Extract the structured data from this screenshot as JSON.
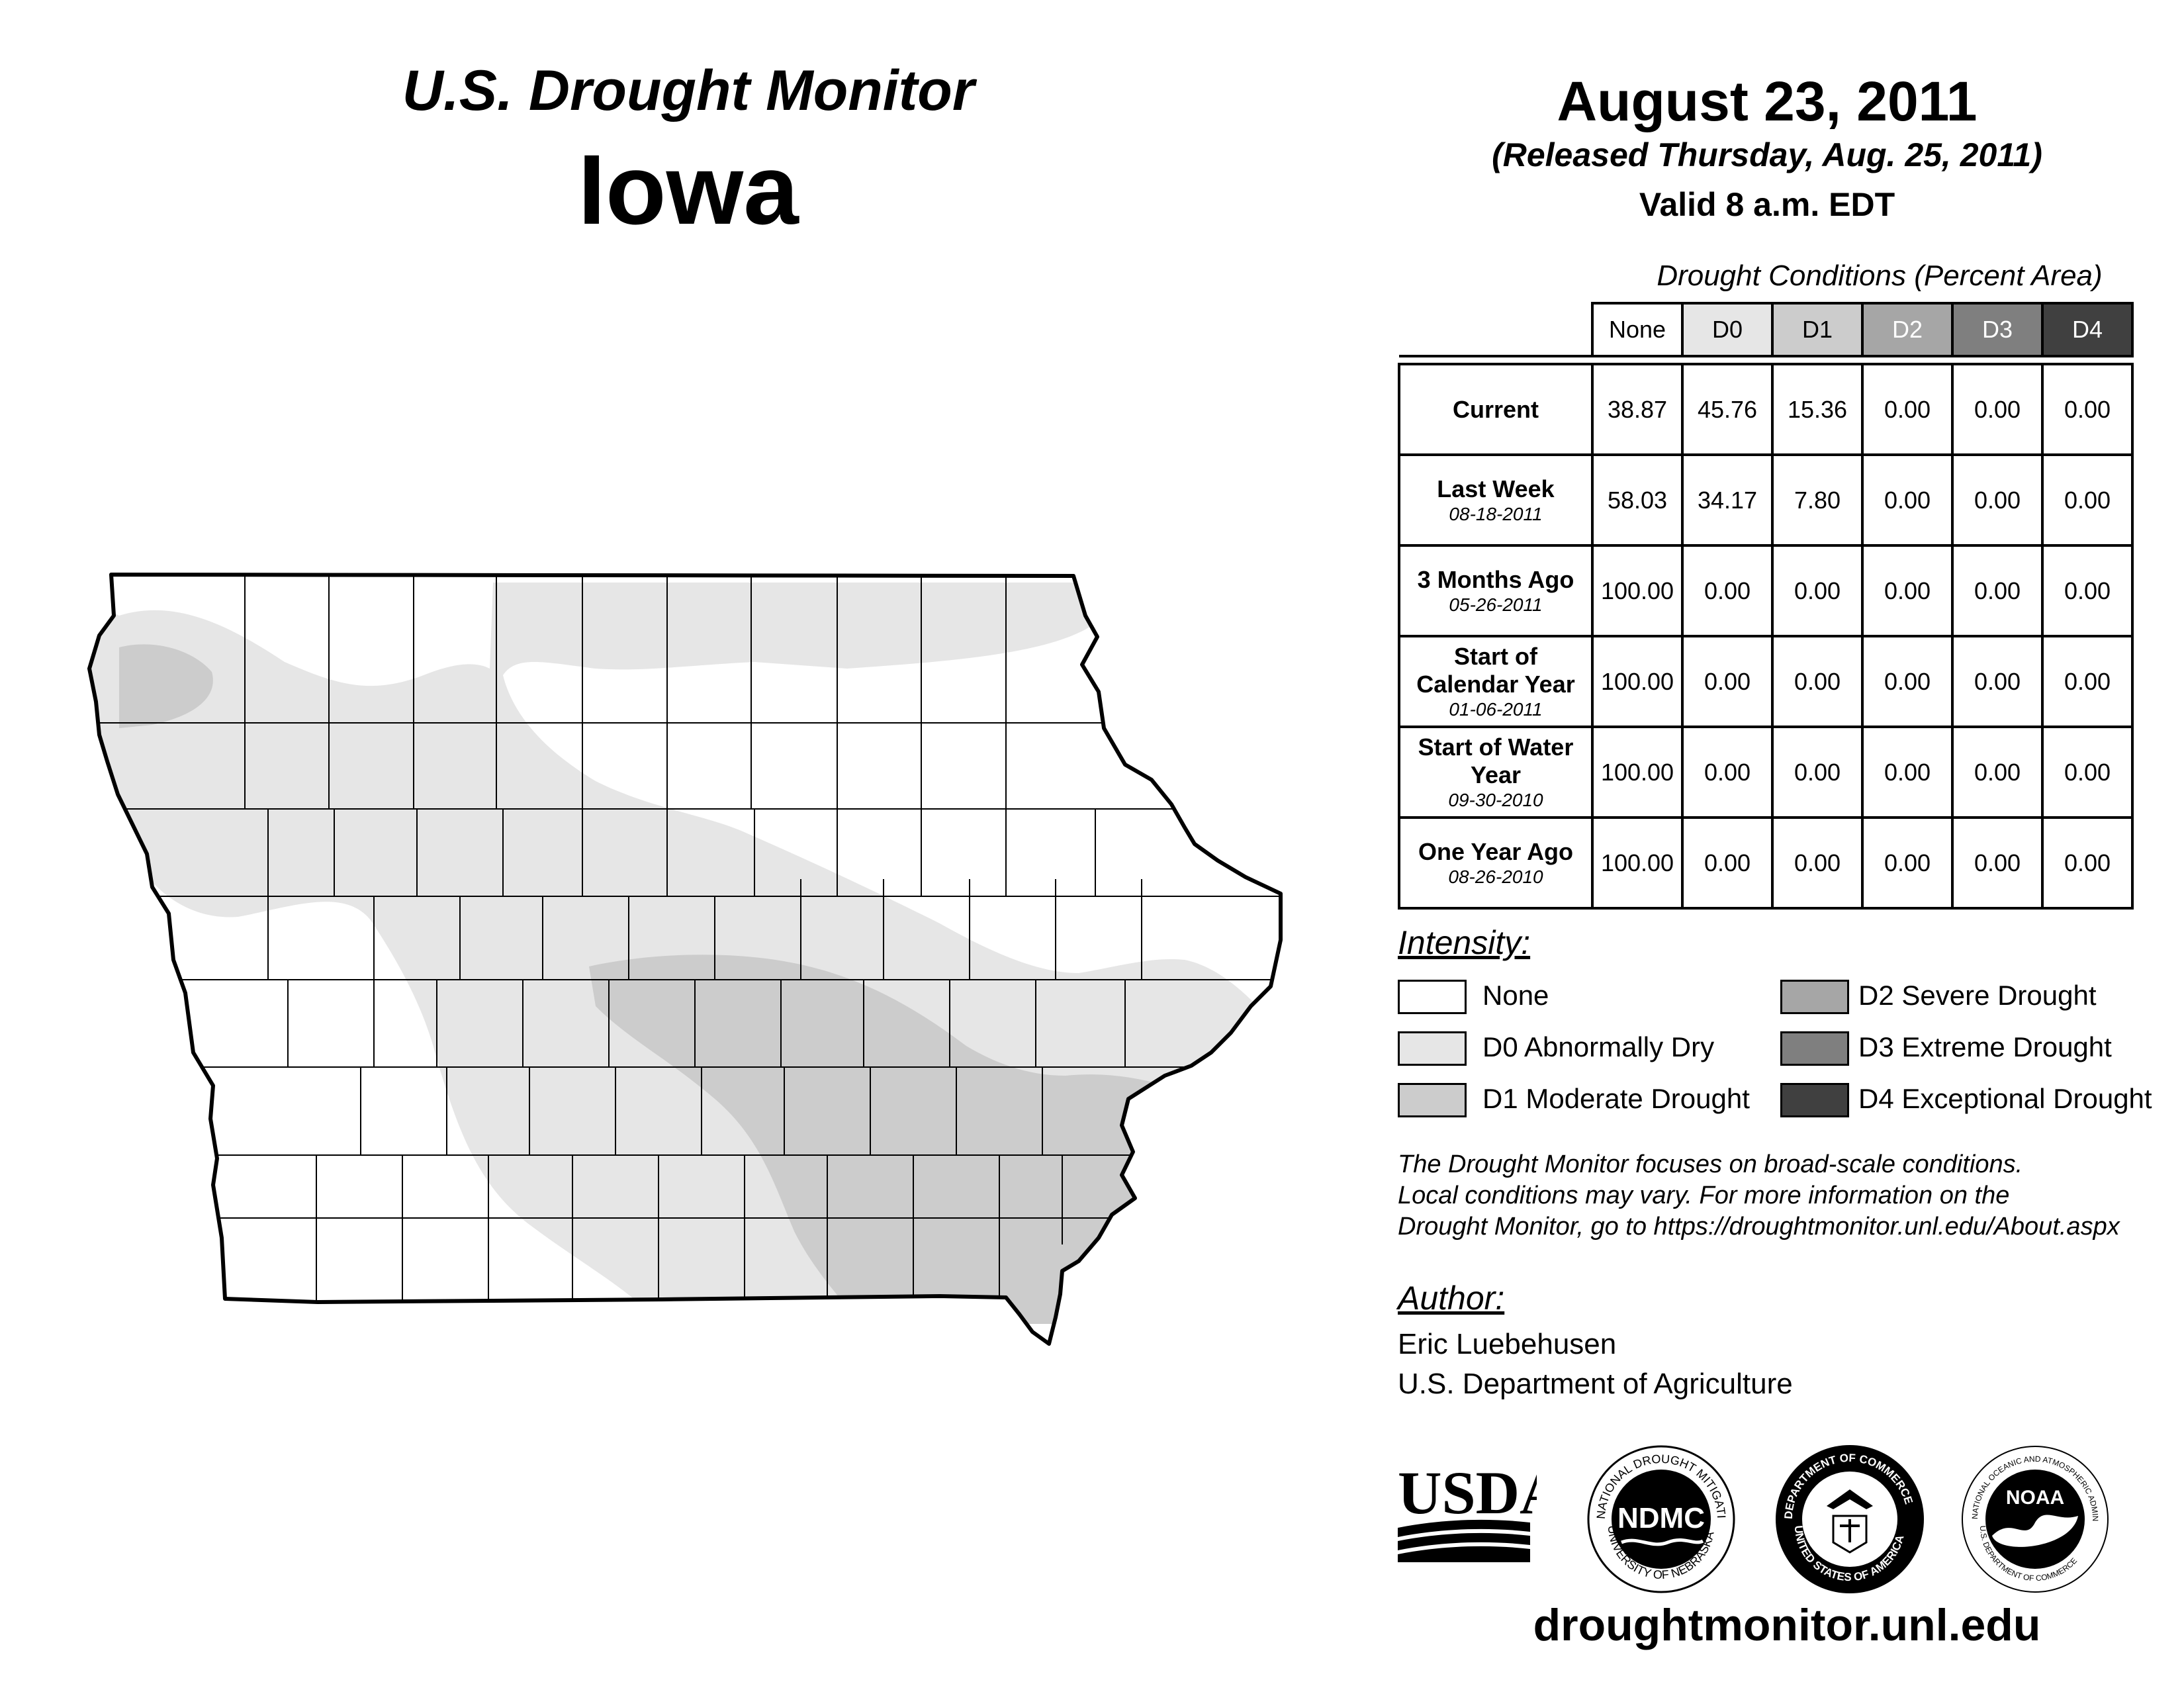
{
  "header": {
    "subtitle": "U.S. Drought Monitor",
    "state": "Iowa",
    "date": "August 23, 2011",
    "released": "(Released Thursday, Aug. 25, 2011)",
    "valid": "Valid 8 a.m. EDT"
  },
  "table": {
    "caption": "Drought Conditions (Percent Area)",
    "columns": [
      "None",
      "D0",
      "D1",
      "D2",
      "D3",
      "D4"
    ],
    "rows": [
      {
        "label": "Current",
        "date": "",
        "values": [
          "38.87",
          "45.76",
          "15.36",
          "0.00",
          "0.00",
          "0.00"
        ]
      },
      {
        "label": "Last Week",
        "date": "08-18-2011",
        "values": [
          "58.03",
          "34.17",
          "7.80",
          "0.00",
          "0.00",
          "0.00"
        ]
      },
      {
        "label": "3 Months Ago",
        "date": "05-26-2011",
        "values": [
          "100.00",
          "0.00",
          "0.00",
          "0.00",
          "0.00",
          "0.00"
        ]
      },
      {
        "label": "Start of Calendar Year",
        "date": "01-06-2011",
        "values": [
          "100.00",
          "0.00",
          "0.00",
          "0.00",
          "0.00",
          "0.00"
        ]
      },
      {
        "label": "Start of Water Year",
        "date": "09-30-2010",
        "values": [
          "100.00",
          "0.00",
          "0.00",
          "0.00",
          "0.00",
          "0.00"
        ]
      },
      {
        "label": "One Year Ago",
        "date": "08-26-2010",
        "values": [
          "100.00",
          "0.00",
          "0.00",
          "0.00",
          "0.00",
          "0.00"
        ]
      }
    ]
  },
  "legend": {
    "heading": "Intensity:",
    "items": [
      {
        "label": "None",
        "color": "#ffffff"
      },
      {
        "label": "D0 Abnormally Dry",
        "color": "#e6e6e6"
      },
      {
        "label": "D1 Moderate Drought",
        "color": "#cccccc"
      },
      {
        "label": "D2 Severe Drought",
        "color": "#a6a6a6"
      },
      {
        "label": "D3 Extreme Drought",
        "color": "#7f7f7f"
      },
      {
        "label": "D4 Exceptional Drought",
        "color": "#404040"
      }
    ]
  },
  "note": {
    "line1": "The Drought Monitor focuses on broad-scale conditions.",
    "line2": "Local conditions may vary. For more information on the",
    "line3": "Drought Monitor, go to https://droughtmonitor.unl.edu/About.aspx"
  },
  "author": {
    "heading": "Author:",
    "name": "Eric Luebehusen",
    "org": "U.S. Department of Agriculture"
  },
  "logos": {
    "usda": "USDA",
    "ndmc": "NDMC",
    "ndmc_ring_top": "NATIONAL DROUGHT MITIGATION CENTER",
    "ndmc_ring_bottom": "UNIVERSITY OF NEBRASKA",
    "commerce_ring_top": "DEPARTMENT OF COMMERCE",
    "commerce_ring_bottom": "UNITED STATES OF AMERICA",
    "noaa": "NOAA",
    "noaa_ring_top": "NATIONAL OCEANIC AND ATMOSPHERIC ADMINISTRATION",
    "noaa_ring_bottom": "U.S. DEPARTMENT OF COMMERCE"
  },
  "footer": {
    "url": "droughtmonitor.unl.edu"
  }
}
